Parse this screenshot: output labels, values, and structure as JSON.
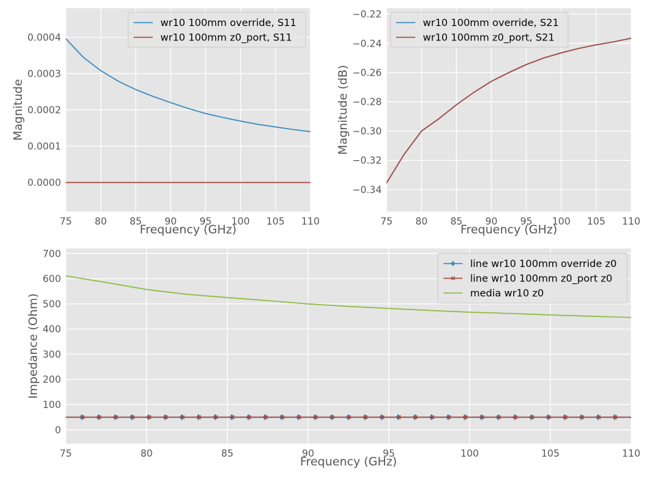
{
  "colors": {
    "axes_bg": "#e5e5e5",
    "grid": "#ffffff",
    "blue": "#348abd",
    "red": "#a8473e",
    "green": "#8eba42",
    "tick_text": "#555555"
  },
  "chart_data": [
    {
      "type": "line",
      "xlabel": "Frequency (GHz)",
      "ylabel": "Magnitude",
      "xlim": [
        75,
        110
      ],
      "ylim": [
        -8e-05,
        0.00048
      ],
      "xticks": [
        75,
        80,
        85,
        90,
        95,
        100,
        105,
        110
      ],
      "yticks": [
        0,
        0.0001,
        0.0002,
        0.0003,
        0.0004
      ],
      "ytick_labels": [
        "0.0000",
        "0.0001",
        "0.0002",
        "0.0003",
        "0.0004"
      ],
      "grid": true,
      "legend": "upper right",
      "series": [
        {
          "name": "wr10 100mm override, S11",
          "color": "blue",
          "x": [
            75,
            77.5,
            80,
            82.5,
            85,
            87.5,
            90,
            92.5,
            95,
            97.5,
            100,
            102.5,
            105,
            107.5,
            110
          ],
          "y": [
            0.000396,
            0.000345,
            0.000308,
            0.000279,
            0.000256,
            0.000237,
            0.00022,
            0.000204,
            0.00019,
            0.000179,
            0.000169,
            0.00016,
            0.000153,
            0.000146,
            0.00014
          ]
        },
        {
          "name": "wr10 100mm z0_port, S11",
          "color": "red",
          "x": [
            75,
            110
          ],
          "y": [
            0,
            0
          ]
        }
      ]
    },
    {
      "type": "line",
      "xlabel": "Frequency (GHz)",
      "ylabel": "Magnitude (dB)",
      "xlim": [
        75,
        110
      ],
      "ylim": [
        -0.355,
        -0.216
      ],
      "xticks": [
        75,
        80,
        85,
        90,
        95,
        100,
        105,
        110
      ],
      "yticks": [
        -0.34,
        -0.32,
        -0.3,
        -0.28,
        -0.26,
        -0.24,
        -0.22
      ],
      "ytick_labels": [
        "−0.34",
        "−0.32",
        "−0.30",
        "−0.28",
        "−0.26",
        "−0.24",
        "−0.22"
      ],
      "grid": true,
      "legend": "upper left",
      "series": [
        {
          "name": "wr10 100mm override, S21",
          "color": "blue",
          "x": [
            75,
            77.5,
            80,
            82.5,
            85,
            87.5,
            90,
            92.5,
            95,
            97.5,
            100,
            102.5,
            105,
            107.5,
            110
          ],
          "y": [
            -0.3355,
            -0.316,
            -0.3,
            -0.2915,
            -0.282,
            -0.2735,
            -0.266,
            -0.26,
            -0.2545,
            -0.25,
            -0.2465,
            -0.2435,
            -0.241,
            -0.239,
            -0.2365
          ]
        },
        {
          "name": "wr10 100mm z0_port, S21",
          "color": "red",
          "x": [
            75,
            77.5,
            80,
            82.5,
            85,
            87.5,
            90,
            92.5,
            95,
            97.5,
            100,
            102.5,
            105,
            107.5,
            110
          ],
          "y": [
            -0.3355,
            -0.316,
            -0.3,
            -0.2915,
            -0.282,
            -0.2735,
            -0.266,
            -0.26,
            -0.2545,
            -0.25,
            -0.2465,
            -0.2435,
            -0.241,
            -0.239,
            -0.2365
          ]
        }
      ]
    },
    {
      "type": "line",
      "xlabel": "Frequency (GHz)",
      "ylabel": "Impedance (Ohm)",
      "xlim": [
        75,
        110
      ],
      "ylim": [
        -55,
        720
      ],
      "xticks": [
        75,
        80,
        85,
        90,
        95,
        100,
        105,
        110
      ],
      "yticks": [
        0,
        100,
        200,
        300,
        400,
        500,
        600,
        700
      ],
      "ytick_labels": [
        "0",
        "100",
        "200",
        "300",
        "400",
        "500",
        "600",
        "700"
      ],
      "grid": true,
      "legend": "upper right",
      "series": [
        {
          "name": "line wr10 100mm override z0",
          "color": "blue",
          "marker": "diamond",
          "x": [
            75,
            110
          ],
          "y": [
            50,
            50
          ]
        },
        {
          "name": "line wr10 100mm z0_port z0",
          "color": "red",
          "marker": "x",
          "x": [
            75,
            110
          ],
          "y": [
            50,
            50
          ]
        },
        {
          "name": "media wr10 z0",
          "color": "green",
          "x": [
            75,
            77.5,
            80,
            82.5,
            85,
            87.5,
            90,
            92.5,
            95,
            97.5,
            100,
            102.5,
            105,
            107.5,
            110
          ],
          "y": [
            611,
            585,
            557,
            538,
            525,
            513,
            500,
            490,
            482,
            474,
            467,
            462,
            456,
            451,
            446
          ]
        }
      ]
    }
  ]
}
